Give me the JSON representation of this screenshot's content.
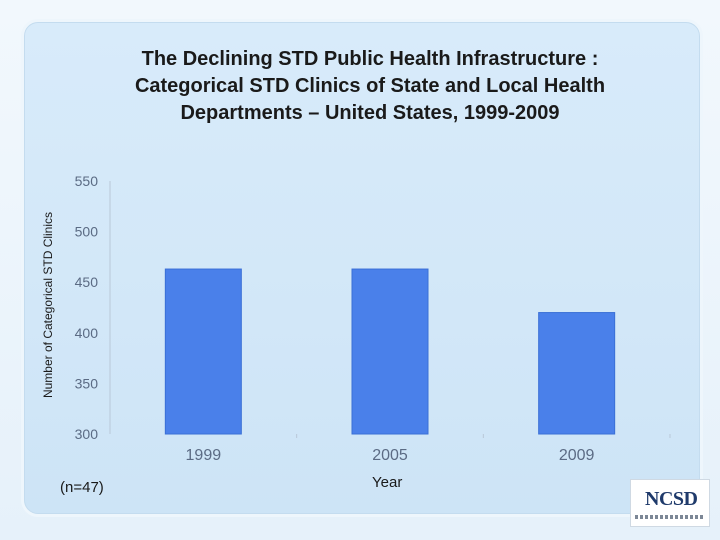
{
  "chart_data": {
    "type": "bar",
    "title": "The Declining STD Public Health Infrastructure : Categorical STD Clinics of State and Local Health Departments – United States, 1999-2009",
    "title_lines": [
      "The Declining STD Public Health Infrastructure :",
      "Categorical STD Clinics of State and Local Health",
      "Departments – United States, 1999-2009"
    ],
    "categories": [
      "1999",
      "2005",
      "2009"
    ],
    "values": [
      463,
      463,
      420
    ],
    "xlabel": "Year",
    "ylabel": "Number of Categorical STD Clinics",
    "ylim": [
      300,
      550
    ],
    "yticks": [
      "300",
      "350",
      "400",
      "450",
      "500",
      "550"
    ],
    "grid": false,
    "legend": "none",
    "bar_color": "#4a80ea",
    "axis_label_color": "#5b6b84"
  },
  "annotation": {
    "note": "(n=47)"
  },
  "logo": {
    "text": "NCSD"
  }
}
